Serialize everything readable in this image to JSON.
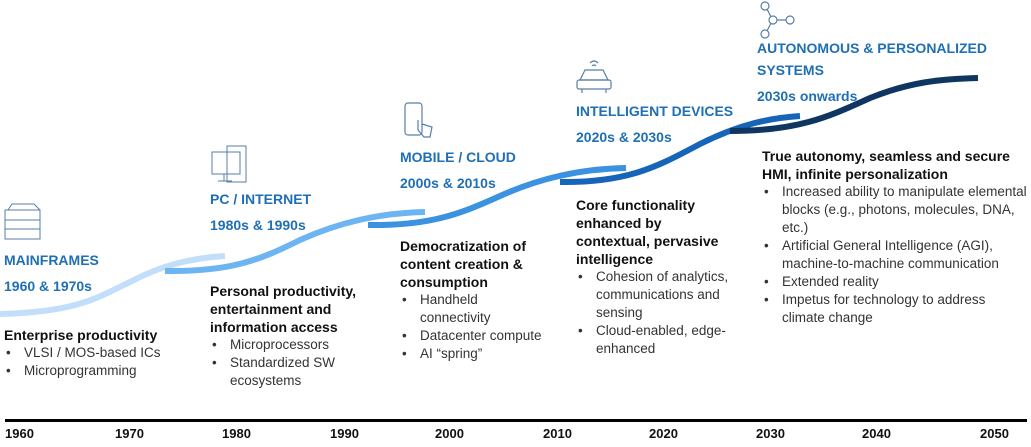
{
  "eras": [
    {
      "title": "MAINFRAMES",
      "years": "1960 & 1970s",
      "heading": "Enterprise productivity",
      "bullets": [
        "VLSI / MOS-based ICs",
        "Microprogramming"
      ],
      "icon": "server-icon",
      "color": "#c2defa"
    },
    {
      "title": "PC / INTERNET",
      "years": "1980s  & 1990s",
      "heading": "Personal productivity, entertainment and information access",
      "bullets": [
        "Microprocessors",
        "Standardized SW ecosystems"
      ],
      "icon": "monitor-icon",
      "color": "#6db5f2"
    },
    {
      "title": "MOBILE / CLOUD",
      "years": "2000s & 2010s",
      "heading": "Democratization of content creation & consumption",
      "bullets": [
        "Handheld connectivity",
        "Datacenter compute",
        "AI “spring”"
      ],
      "icon": "smartphone-icon",
      "color": "#3a92e0"
    },
    {
      "title": "INTELLIGENT DEVICES",
      "years": "2020s & 2030s",
      "heading": "Core functionality enhanced by contextual, pervasive intelligence",
      "bullets": [
        "Cohesion of analytics, communications and sensing",
        "Cloud-enabled, edge-enhanced"
      ],
      "icon": "car-icon",
      "color": "#1765b8"
    },
    {
      "title": "AUTONOMOUS & PERSONALIZED SYSTEMS",
      "years": "2030s onwards",
      "heading": "True autonomy, seamless and secure HMI, infinite personalization",
      "bullets": [
        "Increased ability to manipulate elemental blocks (e.g., photons, molecules, DNA, etc.)",
        "Artificial General Intelligence (AGI), machine-to-machine communication",
        "Extended reality",
        "Impetus for technology to address climate change"
      ],
      "icon": "network-nodes-icon",
      "color": "#0e3660"
    }
  ],
  "axis": {
    "ticks": [
      "1960",
      "1970",
      "1980",
      "1990",
      "2000",
      "2010",
      "2020",
      "2030",
      "2040",
      "2050"
    ]
  }
}
